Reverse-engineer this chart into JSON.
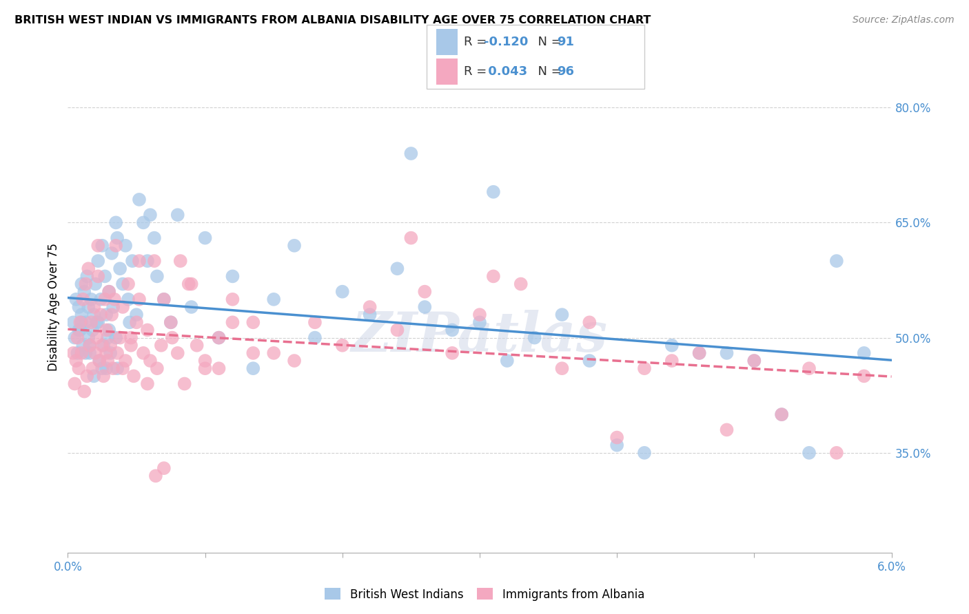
{
  "title": "BRITISH WEST INDIAN VS IMMIGRANTS FROM ALBANIA DISABILITY AGE OVER 75 CORRELATION CHART",
  "source": "Source: ZipAtlas.com",
  "ylabel": "Disability Age Over 75",
  "watermark": "ZIPatlas",
  "legend_label1": "British West Indians",
  "legend_label2": "Immigrants from Albania",
  "r1": "-0.120",
  "n1": "91",
  "r2": "0.043",
  "n2": "96",
  "color1": "#a8c8e8",
  "color2": "#f4a8c0",
  "line_color1": "#4a90d0",
  "line_color2": "#e87090",
  "axis_label_color": "#4a90d0",
  "bg_color": "#ffffff",
  "grid_color": "#cccccc",
  "xmin": 0.0,
  "xmax": 6.0,
  "ymin": 22.0,
  "ymax": 86.0,
  "bwi_x": [
    0.04,
    0.05,
    0.06,
    0.07,
    0.08,
    0.09,
    0.1,
    0.1,
    0.11,
    0.12,
    0.13,
    0.14,
    0.15,
    0.15,
    0.16,
    0.17,
    0.18,
    0.19,
    0.2,
    0.21,
    0.22,
    0.23,
    0.24,
    0.25,
    0.26,
    0.27,
    0.28,
    0.29,
    0.3,
    0.31,
    0.32,
    0.33,
    0.35,
    0.36,
    0.38,
    0.4,
    0.42,
    0.44,
    0.45,
    0.47,
    0.5,
    0.52,
    0.55,
    0.58,
    0.6,
    0.63,
    0.65,
    0.7,
    0.75,
    0.8,
    0.9,
    1.0,
    1.1,
    1.2,
    1.35,
    1.5,
    1.65,
    1.8,
    2.0,
    2.2,
    2.4,
    2.6,
    2.8,
    3.0,
    3.2,
    3.4,
    3.6,
    3.8,
    4.0,
    4.2,
    4.4,
    4.6,
    4.8,
    5.0,
    5.2,
    5.4,
    5.6,
    5.8,
    2.5,
    3.1,
    0.28,
    0.35,
    0.08,
    0.1,
    0.13,
    0.16,
    0.19,
    0.22,
    0.25,
    0.3,
    0.36
  ],
  "bwi_y": [
    52,
    50,
    55,
    48,
    54,
    51,
    57,
    53,
    49,
    56,
    52,
    58,
    50,
    54,
    48,
    55,
    51,
    53,
    57,
    52,
    60,
    47,
    55,
    62,
    49,
    58,
    53,
    50,
    56,
    48,
    61,
    54,
    65,
    63,
    59,
    57,
    62,
    55,
    52,
    60,
    53,
    68,
    65,
    60,
    66,
    63,
    58,
    55,
    52,
    66,
    54,
    63,
    50,
    58,
    46,
    55,
    62,
    50,
    56,
    53,
    59,
    54,
    51,
    52,
    47,
    50,
    53,
    47,
    36,
    35,
    49,
    48,
    48,
    47,
    40,
    35,
    60,
    48,
    74,
    69,
    46,
    50,
    51,
    52,
    48,
    49,
    45,
    52,
    46,
    51,
    46
  ],
  "alb_x": [
    0.04,
    0.05,
    0.06,
    0.07,
    0.08,
    0.09,
    0.1,
    0.11,
    0.12,
    0.13,
    0.14,
    0.15,
    0.16,
    0.17,
    0.18,
    0.19,
    0.2,
    0.21,
    0.22,
    0.23,
    0.24,
    0.25,
    0.26,
    0.27,
    0.28,
    0.29,
    0.3,
    0.31,
    0.32,
    0.33,
    0.35,
    0.36,
    0.38,
    0.4,
    0.42,
    0.44,
    0.46,
    0.48,
    0.5,
    0.52,
    0.55,
    0.58,
    0.6,
    0.63,
    0.65,
    0.68,
    0.7,
    0.75,
    0.8,
    0.85,
    0.9,
    1.0,
    1.1,
    1.2,
    1.35,
    1.5,
    1.65,
    1.8,
    2.0,
    2.2,
    2.4,
    2.6,
    2.8,
    3.0,
    3.3,
    3.6,
    3.8,
    4.0,
    4.2,
    4.4,
    4.6,
    4.8,
    5.0,
    5.2,
    5.4,
    5.6,
    5.8,
    2.5,
    3.1,
    0.22,
    0.28,
    0.34,
    0.4,
    0.46,
    0.52,
    0.58,
    0.64,
    0.7,
    0.76,
    0.82,
    0.88,
    0.94,
    1.0,
    1.1,
    1.2,
    1.35
  ],
  "alb_y": [
    48,
    44,
    47,
    50,
    46,
    52,
    48,
    55,
    43,
    57,
    45,
    59,
    49,
    52,
    46,
    54,
    48,
    50,
    58,
    47,
    53,
    49,
    45,
    55,
    51,
    47,
    56,
    49,
    53,
    46,
    62,
    48,
    50,
    54,
    47,
    57,
    49,
    45,
    52,
    55,
    48,
    51,
    47,
    60,
    46,
    49,
    55,
    52,
    48,
    44,
    57,
    46,
    50,
    55,
    52,
    48,
    47,
    52,
    49,
    54,
    51,
    56,
    48,
    53,
    57,
    46,
    52,
    37,
    46,
    47,
    48,
    38,
    47,
    40,
    46,
    35,
    45,
    63,
    58,
    62,
    48,
    55,
    46,
    50,
    60,
    44,
    32,
    33,
    50,
    60,
    57,
    49,
    47,
    46,
    52,
    48
  ]
}
